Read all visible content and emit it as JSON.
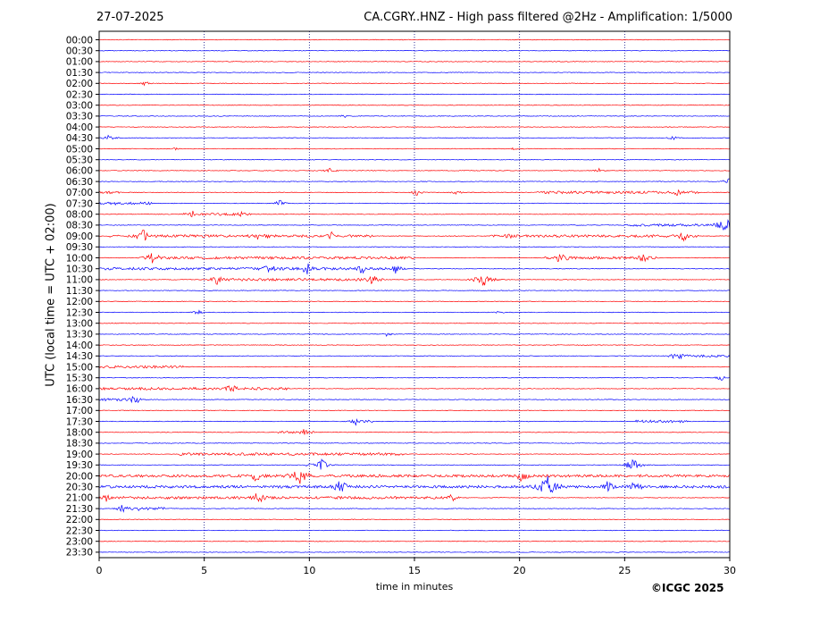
{
  "header": {
    "date": "27-07-2025",
    "title": "CA.CGRY..HNZ - High pass filtered @2Hz - Amplification: 1/5000"
  },
  "footer": {
    "copyright": "©ICGC 2025"
  },
  "colors": {
    "trace_a": "#ff0000",
    "trace_b": "#0000ff",
    "grid": "#000080",
    "frame": "#000000"
  },
  "chart_data": {
    "type": "line",
    "title": "CA.CGRY..HNZ - High pass filtered @2Hz - Amplification: 1/5000",
    "xlabel": "time in minutes",
    "ylabel": "UTC (local time = UTC + 02:00)",
    "xlim": [
      0,
      30
    ],
    "x_ticks": [
      "0",
      "5",
      "10",
      "15",
      "20",
      "25",
      "30"
    ],
    "grid": "vertical dotted at each x tick",
    "row_labels": [
      "00:00",
      "00:30",
      "01:00",
      "01:30",
      "02:00",
      "02:30",
      "03:00",
      "03:30",
      "04:00",
      "04:30",
      "05:00",
      "05:30",
      "06:00",
      "06:30",
      "07:00",
      "07:30",
      "08:00",
      "08:30",
      "09:00",
      "09:30",
      "10:00",
      "10:30",
      "11:00",
      "11:30",
      "12:00",
      "12:30",
      "13:00",
      "13:30",
      "14:00",
      "14:30",
      "15:00",
      "15:30",
      "16:00",
      "16:30",
      "17:00",
      "17:30",
      "18:00",
      "18:30",
      "19:00",
      "19:30",
      "20:00",
      "20:30",
      "21:00",
      "21:30",
      "22:00",
      "22:30",
      "23:00",
      "23:30"
    ],
    "row_colors": "alternating red (even rows) and blue (odd rows)",
    "events": [
      {
        "row": 4,
        "minute": 2.2,
        "amp": 3
      },
      {
        "row": 7,
        "minute": 11.7,
        "amp": 3
      },
      {
        "row": 9,
        "minute": 0.5,
        "amp": 4
      },
      {
        "row": 9,
        "minute": 27.3,
        "amp": 3
      },
      {
        "row": 10,
        "minute": 3.6,
        "amp": 2
      },
      {
        "row": 10,
        "minute": 19.7,
        "amp": 2
      },
      {
        "row": 12,
        "minute": 11.0,
        "amp": 4
      },
      {
        "row": 12,
        "minute": 23.8,
        "amp": 3
      },
      {
        "row": 13,
        "minute": 30.0,
        "amp": 5
      },
      {
        "row": 14,
        "minute": 15.1,
        "amp": 4
      },
      {
        "row": 14,
        "minute": 17.0,
        "amp": 3
      },
      {
        "row": 14,
        "minute": 27.5,
        "amp": 4
      },
      {
        "row": 15,
        "minute": 0.7,
        "amp": 4
      },
      {
        "row": 15,
        "minute": 8.6,
        "amp": 4
      },
      {
        "row": 16,
        "minute": 4.5,
        "amp": 5
      },
      {
        "row": 16,
        "minute": 6.8,
        "amp": 4
      },
      {
        "row": 17,
        "minute": 29.8,
        "amp": 10
      },
      {
        "row": 18,
        "minute": 2.1,
        "amp": 8
      },
      {
        "row": 18,
        "minute": 7.7,
        "amp": 8
      },
      {
        "row": 18,
        "minute": 11.0,
        "amp": 6
      },
      {
        "row": 18,
        "minute": 19.5,
        "amp": 4
      },
      {
        "row": 18,
        "minute": 27.8,
        "amp": 6
      },
      {
        "row": 20,
        "minute": 2.6,
        "amp": 8
      },
      {
        "row": 20,
        "minute": 22.0,
        "amp": 8
      },
      {
        "row": 20,
        "minute": 25.9,
        "amp": 6
      },
      {
        "row": 21,
        "minute": 8.1,
        "amp": 7
      },
      {
        "row": 21,
        "minute": 9.9,
        "amp": 7
      },
      {
        "row": 21,
        "minute": 12.5,
        "amp": 6
      },
      {
        "row": 21,
        "minute": 14.1,
        "amp": 6
      },
      {
        "row": 22,
        "minute": 5.6,
        "amp": 6
      },
      {
        "row": 22,
        "minute": 13.0,
        "amp": 6
      },
      {
        "row": 22,
        "minute": 18.3,
        "amp": 9
      },
      {
        "row": 25,
        "minute": 4.7,
        "amp": 3
      },
      {
        "row": 25,
        "minute": 19.1,
        "amp": 3
      },
      {
        "row": 27,
        "minute": 13.7,
        "amp": 3
      },
      {
        "row": 29,
        "minute": 27.5,
        "amp": 6
      },
      {
        "row": 31,
        "minute": 29.6,
        "amp": 4
      },
      {
        "row": 32,
        "minute": 6.3,
        "amp": 6
      },
      {
        "row": 33,
        "minute": 1.7,
        "amp": 6
      },
      {
        "row": 35,
        "minute": 12.2,
        "amp": 5
      },
      {
        "row": 36,
        "minute": 9.8,
        "amp": 5
      },
      {
        "row": 39,
        "minute": 10.6,
        "amp": 7
      },
      {
        "row": 39,
        "minute": 25.4,
        "amp": 8
      },
      {
        "row": 40,
        "minute": 7.5,
        "amp": 8
      },
      {
        "row": 40,
        "minute": 9.5,
        "amp": 12
      },
      {
        "row": 40,
        "minute": 20.1,
        "amp": 8
      },
      {
        "row": 41,
        "minute": 11.5,
        "amp": 9
      },
      {
        "row": 41,
        "minute": 21.3,
        "amp": 14
      },
      {
        "row": 41,
        "minute": 24.2,
        "amp": 7
      },
      {
        "row": 41,
        "minute": 25.5,
        "amp": 8
      },
      {
        "row": 42,
        "minute": 0.4,
        "amp": 6
      },
      {
        "row": 42,
        "minute": 7.6,
        "amp": 8
      },
      {
        "row": 42,
        "minute": 16.8,
        "amp": 5
      },
      {
        "row": 43,
        "minute": 1.1,
        "amp": 5
      },
      {
        "row": 43,
        "minute": 1.9,
        "amp": 5
      }
    ],
    "noisy_bands": [
      {
        "row": 14,
        "from": 0.0,
        "to": 1.0
      },
      {
        "row": 14,
        "from": 20.8,
        "to": 28.5
      },
      {
        "row": 15,
        "from": 0.0,
        "to": 2.5
      },
      {
        "row": 16,
        "from": 4.0,
        "to": 7.2
      },
      {
        "row": 17,
        "from": 25.0,
        "to": 30.0
      },
      {
        "row": 18,
        "from": 0.5,
        "to": 13.0
      },
      {
        "row": 18,
        "from": 18.5,
        "to": 28.5
      },
      {
        "row": 20,
        "from": 2.0,
        "to": 15.0
      },
      {
        "row": 20,
        "from": 21.0,
        "to": 26.5
      },
      {
        "row": 21,
        "from": 0.0,
        "to": 14.2
      },
      {
        "row": 22,
        "from": 5.3,
        "to": 13.5
      },
      {
        "row": 29,
        "from": 27.0,
        "to": 30.0
      },
      {
        "row": 30,
        "from": 0.0,
        "to": 4.0
      },
      {
        "row": 32,
        "from": 0.0,
        "to": 9.0
      },
      {
        "row": 33,
        "from": 0.0,
        "to": 2.0
      },
      {
        "row": 35,
        "from": 12.0,
        "to": 13.0
      },
      {
        "row": 35,
        "from": 25.5,
        "to": 28.0
      },
      {
        "row": 36,
        "from": 8.5,
        "to": 10.2
      },
      {
        "row": 38,
        "from": 3.8,
        "to": 14.5
      },
      {
        "row": 39,
        "from": 9.8,
        "to": 10.8
      },
      {
        "row": 40,
        "from": 0.0,
        "to": 30.0
      },
      {
        "row": 41,
        "from": 0.0,
        "to": 30.0
      },
      {
        "row": 42,
        "from": 0.0,
        "to": 17.0
      },
      {
        "row": 43,
        "from": 0.8,
        "to": 3.2
      }
    ]
  }
}
